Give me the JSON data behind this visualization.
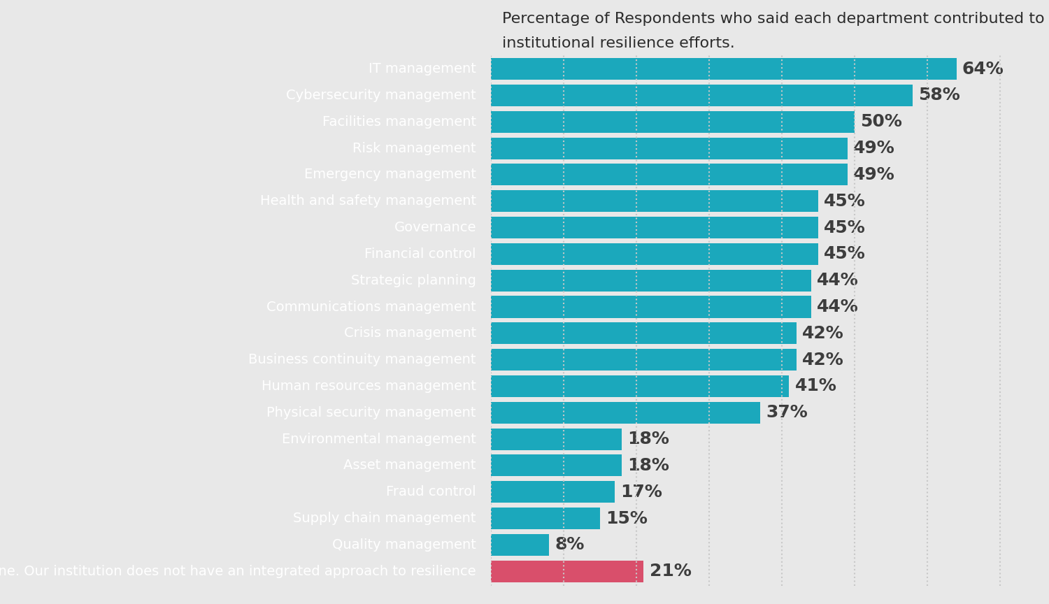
{
  "categories": [
    "IT management",
    "Cybersecurity management",
    "Facilities management",
    "Risk management",
    "Emergency management",
    "Health and safety management",
    "Governance",
    "Financial control",
    "Strategic planning",
    "Communications management",
    "Crisis management",
    "Business continuity management",
    "Human resources management",
    "Physical security management",
    "Environmental management",
    "Asset management",
    "Fraud control",
    "Supply chain management",
    "Quality management",
    "None. Our institution does not have an integrated approach to resilience"
  ],
  "values": [
    64,
    58,
    50,
    49,
    49,
    45,
    45,
    45,
    44,
    44,
    42,
    42,
    41,
    37,
    18,
    18,
    17,
    15,
    8,
    21
  ],
  "bar_color_main": "#1ba8bc",
  "bar_color_none": "#d94f6b",
  "value_label_color": "#3d3d3d",
  "background_color": "#e8e8e8",
  "left_panel_color": "#111111",
  "label_color_left": "#ffffff",
  "dotted_line_color": "#c8c8c8",
  "value_fontsize": 18,
  "label_fontsize": 14,
  "title_fontsize": 16,
  "bar_height": 0.82,
  "xlim": [
    0,
    75
  ],
  "title_line1": "Percentage of Respondents who said each department contributed to integrate",
  "title_line2": "institutional resilience efforts."
}
